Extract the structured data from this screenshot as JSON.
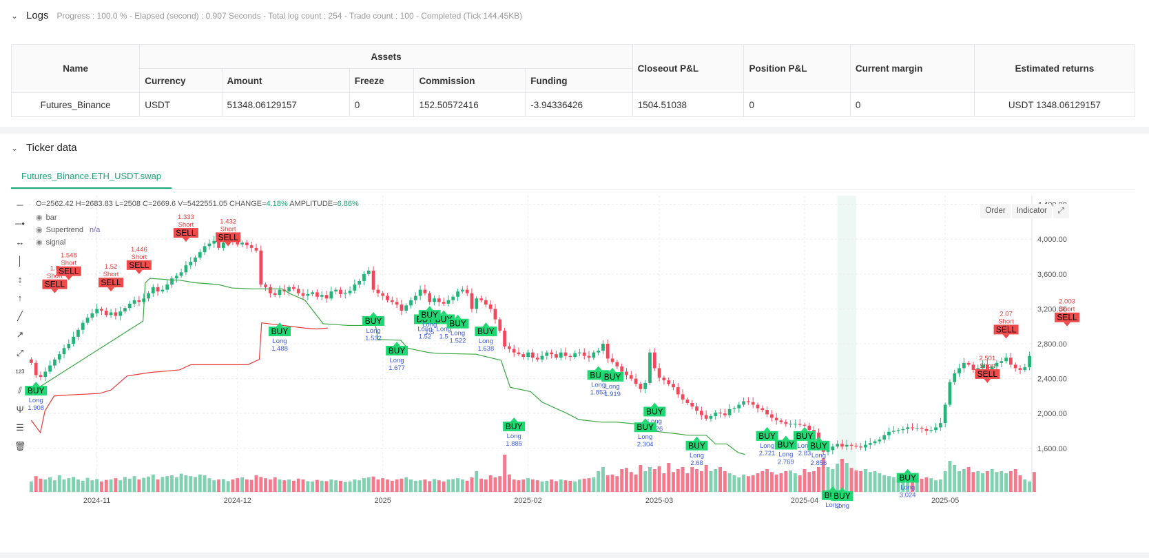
{
  "logs": {
    "title": "Logs",
    "progress": "Progress : 100.0 % - Elapsed (second) : 0.907  Seconds - Total log count : 254 - Trade count : 100 - Completed (Tick 144.45KB)"
  },
  "table": {
    "headers": {
      "name": "Name",
      "assets": "Assets",
      "currency": "Currency",
      "amount": "Amount",
      "freeze": "Freeze",
      "commission": "Commission",
      "funding": "Funding",
      "closeout": "Closeout P&L",
      "position": "Position P&L",
      "margin": "Current margin",
      "returns": "Estimated returns"
    },
    "row": {
      "name": "Futures_Binance",
      "currency": "USDT",
      "amount": "51348.06129157",
      "freeze": "0",
      "commission": "152.50572416",
      "funding": "-3.94336426",
      "closeout": "1504.51038",
      "position": "0",
      "margin": "0",
      "returns": "USDT 1348.06129157"
    }
  },
  "ticker": {
    "title": "Ticker data",
    "tab": "Futures_Binance.ETH_USDT.swap",
    "ohlc_label": "O=2562.42 H=2683.83 L=2508 C=2669.6 V=5422551.05 CHANGE=",
    "change": "4.18%",
    "amp_label": " AMPLITUDE=",
    "amplitude": "6.86%",
    "legend": {
      "bar": "bar",
      "supertrend": "Supertrend",
      "supertrend_value": "n/a",
      "signal": "signal"
    },
    "buttons": {
      "order": "Order",
      "indicator": "Indicator"
    },
    "icons": [
      "horizontal-line-icon",
      "ray-icon",
      "extended-line-icon",
      "vertical-line-icon",
      "vertical-segment-icon",
      "vertical-ray-icon",
      "trend-line-icon",
      "trend-ray-icon",
      "extended-trend-icon",
      "label-icon",
      "parallel-channel-icon",
      "pitchfork-icon",
      "fib-icon",
      "trash-icon"
    ]
  },
  "chart_data": {
    "type": "candlestick",
    "y_ticks": [
      "4,400.00",
      "4,000.00",
      "3,600.00",
      "3,200.00",
      "2,800.00",
      "2,400.00",
      "2,000.00",
      "1,600.00"
    ],
    "y_tick_values": [
      4400,
      4000,
      3600,
      3200,
      2800,
      2400,
      2000,
      1600
    ],
    "x_ticks": [
      "2024-11",
      "2024-12",
      "2025",
      "2025-02",
      "2025-03",
      "2025-04",
      "2025-05"
    ],
    "x_tick_days": [
      14,
      44,
      75,
      106,
      134,
      165,
      195
    ],
    "ylim": [
      1100,
      4500
    ],
    "closes": [
      2580,
      2440,
      2420,
      2480,
      2550,
      2620,
      2680,
      2750,
      2800,
      2880,
      2960,
      3040,
      3100,
      3150,
      3200,
      3180,
      3130,
      3160,
      3120,
      3170,
      3210,
      3260,
      3300,
      3280,
      3320,
      3380,
      3450,
      3400,
      3420,
      3480,
      3550,
      3580,
      3620,
      3700,
      3740,
      3790,
      3850,
      3920,
      3950,
      3980,
      3900,
      3960,
      4000,
      3980,
      3940,
      3960,
      3930,
      3900,
      3870,
      3480,
      3450,
      3380,
      3360,
      3420,
      3400,
      3450,
      3430,
      3380,
      3350,
      3370,
      3390,
      3340,
      3360,
      3320,
      3400,
      3420,
      3370,
      3380,
      3410,
      3480,
      3520,
      3600,
      3640,
      3420,
      3380,
      3350,
      3300,
      3280,
      3250,
      3180,
      3240,
      3300,
      3350,
      3420,
      3380,
      3280,
      3320,
      3280,
      3260,
      3300,
      3340,
      3400,
      3420,
      3380,
      3200,
      3320,
      3300,
      3250,
      3200,
      3080,
      2950,
      2770,
      2740,
      2700,
      2680,
      2650,
      2700,
      2640,
      2620,
      2660,
      2700,
      2680,
      2640,
      2700,
      2660,
      2650,
      2690,
      2700,
      2660,
      2640,
      2700,
      2720,
      2800,
      2630,
      2590,
      2540,
      2480,
      2440,
      2400,
      2340,
      2280,
      2350,
      2700,
      2520,
      2410,
      2380,
      2340,
      2300,
      2220,
      2160,
      2120,
      2080,
      2030,
      1980,
      1940,
      1970,
      2010,
      2000,
      1980,
      2050,
      2060,
      2100,
      2140,
      2130,
      2100,
      2060,
      2040,
      1990,
      1950,
      1920,
      1900,
      1880,
      1880,
      1880,
      1870,
      1860,
      1810,
      1780,
      1600,
      1560,
      1580,
      1620,
      1650,
      1620,
      1640,
      1630,
      1620,
      1610,
      1640,
      1660,
      1680,
      1700,
      1750,
      1790,
      1800,
      1810,
      1820,
      1840,
      1830,
      1830,
      1820,
      1800,
      1810,
      1840,
      1890,
      2100,
      2360,
      2460,
      2520,
      2580,
      2560,
      2500,
      2520,
      2560,
      2480,
      2540,
      2580,
      2600,
      2640,
      2560,
      2520,
      2500,
      2530,
      2660
    ],
    "volumes": [
      0.25,
      0.38,
      0.32,
      0.3,
      0.35,
      0.28,
      0.4,
      0.3,
      0.33,
      0.36,
      0.3,
      0.27,
      0.34,
      0.28,
      0.31,
      0.25,
      0.29,
      0.3,
      0.33,
      0.28,
      0.36,
      0.32,
      0.38,
      0.3,
      0.34,
      0.37,
      0.42,
      0.3,
      0.36,
      0.38,
      0.4,
      0.35,
      0.44,
      0.4,
      0.38,
      0.36,
      0.42,
      0.4,
      0.33,
      0.28,
      0.3,
      0.31,
      0.26,
      0.3,
      0.33,
      0.35,
      0.3,
      0.29,
      0.4,
      0.36,
      0.33,
      0.3,
      0.35,
      0.3,
      0.28,
      0.3,
      0.27,
      0.32,
      0.3,
      0.26,
      0.25,
      0.29,
      0.27,
      0.26,
      0.3,
      0.28,
      0.27,
      0.24,
      0.25,
      0.3,
      0.28,
      0.33,
      0.35,
      0.37,
      0.3,
      0.33,
      0.3,
      0.27,
      0.3,
      0.32,
      0.35,
      0.3,
      0.27,
      0.28,
      0.3,
      0.26,
      0.31,
      0.28,
      0.25,
      0.3,
      0.31,
      0.33,
      0.3,
      0.27,
      0.35,
      0.5,
      0.32,
      0.3,
      0.4,
      0.35,
      0.38,
      0.9,
      0.42,
      0.3,
      0.28,
      0.3,
      0.33,
      0.3,
      0.28,
      0.25,
      0.27,
      0.3,
      0.26,
      0.3,
      0.28,
      0.27,
      0.25,
      0.3,
      0.32,
      0.33,
      0.35,
      0.5,
      0.6,
      0.4,
      0.42,
      0.38,
      0.55,
      0.58,
      0.48,
      0.42,
      0.65,
      0.5,
      0.6,
      0.55,
      0.62,
      0.45,
      0.7,
      0.48,
      0.55,
      0.6,
      0.45,
      0.6,
      0.55,
      0.5,
      0.65,
      0.5,
      0.55,
      0.6,
      0.5,
      0.45,
      0.4,
      0.35,
      0.42,
      0.38,
      0.4,
      0.45,
      0.5,
      0.55,
      0.48,
      0.42,
      0.45,
      0.5,
      0.52,
      0.45,
      0.4,
      0.55,
      0.48,
      0.5,
      0.6,
      0.82,
      0.6,
      0.55,
      0.68,
      0.8,
      0.7,
      0.58,
      0.52,
      0.5,
      0.55,
      0.48,
      0.5,
      0.45,
      0.4,
      0.38,
      0.35,
      0.32,
      0.3,
      0.33,
      0.28,
      0.3,
      0.32,
      0.35,
      0.33,
      0.28,
      0.3,
      0.5,
      0.75,
      0.65,
      0.5,
      0.55,
      0.6,
      0.48,
      0.5,
      0.45,
      0.5,
      0.55,
      0.48,
      0.5,
      0.45,
      0.5,
      0.55,
      0.4,
      0.3,
      0.25,
      0.48
    ],
    "supertrend_green": [
      [
        0,
        2760
      ],
      [
        3,
        2730
      ],
      [
        4,
        2760
      ],
      [
        49,
        3510
      ],
      [
        50,
        3950
      ],
      [
        52,
        4000
      ],
      [
        58,
        3990
      ],
      [
        62,
        3980
      ],
      [
        65,
        3980
      ],
      [
        72,
        3950
      ],
      [
        82,
        3930
      ],
      [
        88,
        3890
      ],
      [
        97,
        3880
      ],
      [
        110,
        3880
      ],
      [
        113,
        3830
      ],
      [
        120,
        3750
      ],
      [
        128,
        3480
      ],
      [
        139,
        3460
      ],
      [
        151,
        3460
      ],
      [
        152,
        3300
      ],
      [
        162,
        3290
      ],
      [
        165,
        3200
      ],
      [
        174,
        3150
      ],
      [
        178,
        3140
      ],
      [
        195,
        3130
      ],
      [
        206,
        3060
      ],
      [
        210,
        2750
      ],
      [
        219,
        2700
      ],
      [
        224,
        2580
      ],
      [
        235,
        2450
      ],
      [
        240,
        2380
      ],
      [
        250,
        2350
      ],
      [
        257,
        2350
      ],
      [
        265,
        2330
      ],
      [
        272,
        2250
      ],
      [
        282,
        2220
      ],
      [
        288,
        2200
      ],
      [
        296,
        2200
      ],
      [
        300,
        2100
      ],
      [
        305,
        2100
      ],
      [
        310,
        2000
      ],
      [
        313,
        1980
      ]
    ],
    "supertrend_red": [
      [
        0,
        2370
      ],
      [
        4,
        2230
      ],
      [
        6,
        2480
      ],
      [
        10,
        2650
      ],
      [
        15,
        2660
      ],
      [
        30,
        2680
      ],
      [
        35,
        2720
      ],
      [
        42,
        2880
      ],
      [
        47,
        2900
      ],
      [
        52,
        2920
      ],
      [
        65,
        2950
      ],
      [
        70,
        3010
      ],
      [
        81,
        3010
      ],
      [
        95,
        3010
      ],
      [
        100,
        3070
      ],
      [
        101,
        3490
      ],
      [
        120,
        3430
      ],
      [
        125,
        3420
      ],
      [
        130,
        3430
      ]
    ],
    "signals": [
      {
        "type": "BUY",
        "day": 1,
        "price": 2380,
        "sub": "Long",
        "val": "1.908"
      },
      {
        "type": "SELL",
        "day": 5,
        "price": 3380,
        "sub": "Short",
        "val": "1.5"
      },
      {
        "type": "SELL",
        "day": 8,
        "price": 3530,
        "sub": "Short",
        "val": "1.548"
      },
      {
        "type": "SELL",
        "day": 17,
        "price": 3400,
        "sub": "Short",
        "val": "1.52"
      },
      {
        "type": "SELL",
        "day": 23,
        "price": 3600,
        "sub": "Short",
        "val": "1.446"
      },
      {
        "type": "SELL",
        "day": 33,
        "price": 3970,
        "sub": "Short",
        "val": "1.333"
      },
      {
        "type": "SELL",
        "day": 42,
        "price": 3920,
        "sub": "Short",
        "val": "1.432"
      },
      {
        "type": "BUY",
        "day": 53,
        "price": 3060,
        "sub": "Long",
        "val": "1.488"
      },
      {
        "type": "BUY",
        "day": 73,
        "price": 3180,
        "sub": "Long",
        "val": "1.532"
      },
      {
        "type": "BUY",
        "day": 78,
        "price": 2840,
        "sub": "Long",
        "val": "1.677"
      },
      {
        "type": "BUY",
        "day": 84,
        "price": 3200,
        "sub": "Long",
        "val": "1.52"
      },
      {
        "type": "BUY",
        "day": 88,
        "price": 3200,
        "sub": "Long",
        "val": "1.5"
      },
      {
        "type": "BUY",
        "day": 85,
        "price": 3250,
        "sub": "Long",
        "val": "1.5"
      },
      {
        "type": "BUY",
        "day": 91,
        "price": 3150,
        "sub": "Long",
        "val": "1.522"
      },
      {
        "type": "BUY",
        "day": 97,
        "price": 3060,
        "sub": "Long",
        "val": "1.638"
      },
      {
        "type": "BUY",
        "day": 103,
        "price": 1970,
        "sub": "Long",
        "val": "1.885"
      },
      {
        "type": "BUY",
        "day": 121,
        "price": 2560,
        "sub": "Long",
        "val": "1.853"
      },
      {
        "type": "BUY",
        "day": 124,
        "price": 2540,
        "sub": "Long",
        "val": "1.919"
      },
      {
        "type": "BUY",
        "day": 133,
        "price": 2140,
        "sub": "Long",
        "val": "2.226"
      },
      {
        "type": "BUY",
        "day": 131,
        "price": 1960,
        "sub": "Long",
        "val": "2.304"
      },
      {
        "type": "BUY",
        "day": 142,
        "price": 1750,
        "sub": "Long",
        "val": "2.68"
      },
      {
        "type": "BUY",
        "day": 157,
        "price": 1860,
        "sub": "Long",
        "val": "2.721"
      },
      {
        "type": "BUY",
        "day": 161,
        "price": 1760,
        "sub": "Long",
        "val": "2.769"
      },
      {
        "type": "BUY",
        "day": 165,
        "price": 1860,
        "sub": "Long",
        "val": "2.83"
      },
      {
        "type": "BUY",
        "day": 168,
        "price": 1750,
        "sub": "Long",
        "val": "2.856"
      },
      {
        "type": "BUY",
        "day": 171,
        "price": 1180,
        "sub": "Long",
        "val": ""
      },
      {
        "type": "BUY",
        "day": 173,
        "price": 1170,
        "sub": "Long",
        "val": ""
      },
      {
        "type": "BUY",
        "day": 187,
        "price": 1380,
        "sub": "Long",
        "val": "3.024"
      },
      {
        "type": "SELL",
        "day": 204,
        "price": 2350,
        "sub": "Short",
        "val": "2.501"
      },
      {
        "type": "SELL",
        "day": 208,
        "price": 2860,
        "sub": "Short",
        "val": "2.07"
      },
      {
        "type": "SELL",
        "day": 221,
        "price": 3000,
        "sub": "Short",
        "val": "2.003"
      }
    ],
    "highlight_days": [
      172,
      176
    ]
  }
}
